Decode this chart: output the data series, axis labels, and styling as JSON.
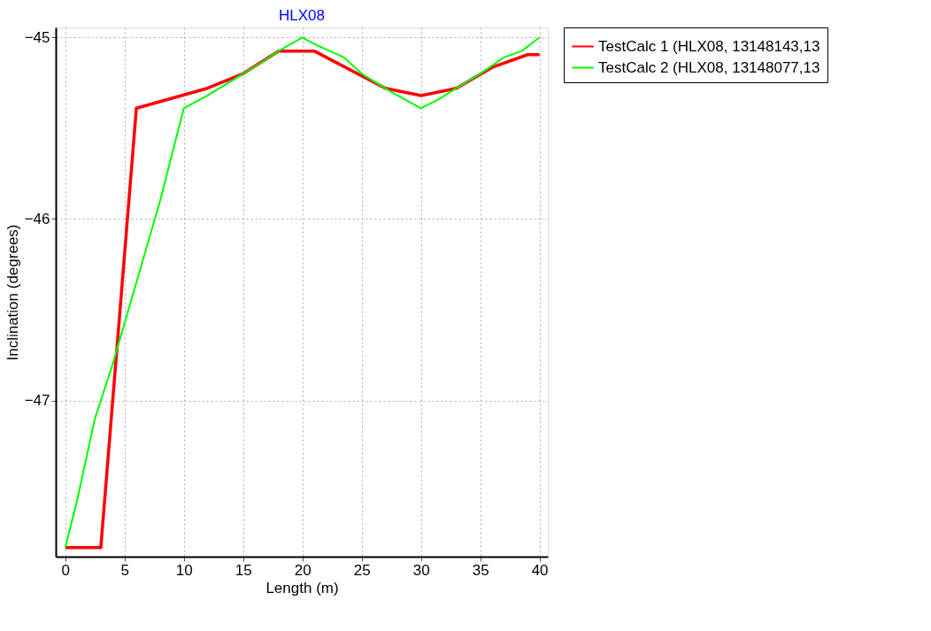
{
  "chart_data": {
    "type": "line",
    "title": "HLX08",
    "xlabel": "Length (m)",
    "ylabel": "Inclination (degrees)",
    "xlim": [
      -0.8,
      40.7
    ],
    "xticks": [
      0,
      5,
      10,
      15,
      20,
      25,
      30,
      35,
      40
    ],
    "ylim": [
      -47.86,
      -44.945
    ],
    "yticks": [
      -47,
      -46,
      -45
    ],
    "grid": true,
    "legend": "top right",
    "marker": "none",
    "line_style": "solid",
    "series": [
      {
        "name": "TestCalc 1 (HLX08, 13148143,13",
        "color": "#ff0000",
        "x": [
          0,
          3,
          6,
          12,
          15,
          18,
          21,
          27,
          30,
          33,
          36,
          39,
          40
        ],
        "values": [
          -47.81,
          -47.81,
          -45.39,
          -45.28,
          -45.2,
          -45.075,
          -45.075,
          -45.28,
          -45.32,
          -45.28,
          -45.165,
          -45.095,
          -45.095
        ]
      },
      {
        "name": "TestCalc 2 (HLX08, 13148077,13",
        "color": "#00ff00",
        "x": [
          0,
          1,
          2.5,
          4,
          6,
          8,
          10,
          12,
          15,
          16.5,
          18,
          20,
          21,
          23.5,
          25,
          27.5,
          30,
          31.5,
          33,
          35,
          37,
          38.5,
          40
        ],
        "values": [
          -47.81,
          -47.55,
          -47.1,
          -46.8,
          -46.35,
          -45.9,
          -45.39,
          -45.32,
          -45.2,
          -45.14,
          -45.075,
          -45.0,
          -45.036,
          -45.11,
          -45.2,
          -45.3,
          -45.39,
          -45.34,
          -45.28,
          -45.2,
          -45.11,
          -45.075,
          -45.0
        ]
      }
    ]
  }
}
